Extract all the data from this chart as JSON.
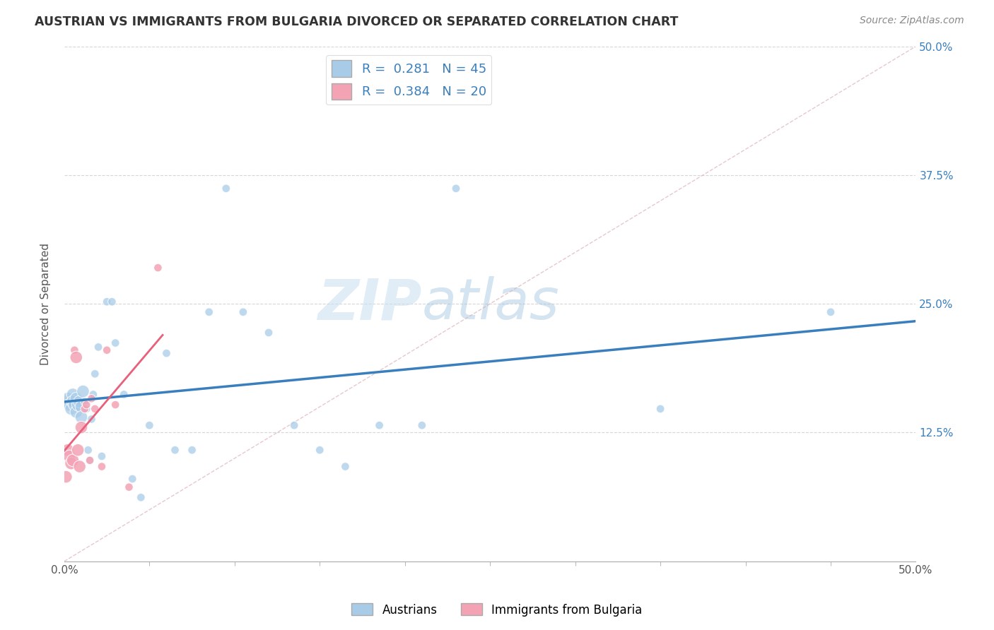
{
  "title": "AUSTRIAN VS IMMIGRANTS FROM BULGARIA DIVORCED OR SEPARATED CORRELATION CHART",
  "source": "Source: ZipAtlas.com",
  "ylabel": "Divorced or Separated",
  "xlim": [
    0.0,
    0.5
  ],
  "ylim": [
    0.0,
    0.5
  ],
  "r_austrians": 0.281,
  "n_austrians": 45,
  "r_bulgarians": 0.384,
  "n_bulgarians": 20,
  "color_austrians": "#a8cce8",
  "color_bulgarians": "#f4a3b5",
  "trendline_austrians_color": "#3a7fbd",
  "trendline_bulgarians_color": "#e8607a",
  "watermark_zip": "ZIP",
  "watermark_atlas": "atlas",
  "legend_austrians": "Austrians",
  "legend_bulgarians": "Immigrants from Bulgaria",
  "austrians_x": [
    0.001,
    0.002,
    0.003,
    0.004,
    0.005,
    0.005,
    0.006,
    0.007,
    0.007,
    0.008,
    0.009,
    0.01,
    0.01,
    0.011,
    0.012,
    0.013,
    0.014,
    0.015,
    0.016,
    0.017,
    0.018,
    0.02,
    0.022,
    0.025,
    0.028,
    0.03,
    0.035,
    0.04,
    0.045,
    0.05,
    0.06,
    0.065,
    0.075,
    0.085,
    0.095,
    0.105,
    0.12,
    0.135,
    0.15,
    0.165,
    0.185,
    0.21,
    0.23,
    0.35,
    0.45
  ],
  "austrians_y": [
    0.155,
    0.158,
    0.152,
    0.148,
    0.162,
    0.155,
    0.152,
    0.158,
    0.145,
    0.152,
    0.155,
    0.15,
    0.14,
    0.165,
    0.155,
    0.148,
    0.108,
    0.098,
    0.138,
    0.162,
    0.182,
    0.208,
    0.102,
    0.252,
    0.252,
    0.212,
    0.162,
    0.08,
    0.062,
    0.132,
    0.202,
    0.108,
    0.108,
    0.242,
    0.362,
    0.242,
    0.222,
    0.132,
    0.108,
    0.092,
    0.132,
    0.132,
    0.362,
    0.148,
    0.242
  ],
  "bulgarians_x": [
    0.001,
    0.002,
    0.003,
    0.004,
    0.005,
    0.006,
    0.007,
    0.008,
    0.009,
    0.01,
    0.012,
    0.013,
    0.015,
    0.016,
    0.018,
    0.022,
    0.025,
    0.03,
    0.038,
    0.055
  ],
  "bulgarians_y": [
    0.082,
    0.108,
    0.102,
    0.095,
    0.098,
    0.205,
    0.198,
    0.108,
    0.092,
    0.13,
    0.148,
    0.152,
    0.098,
    0.158,
    0.148,
    0.092,
    0.205,
    0.152,
    0.072,
    0.285
  ]
}
